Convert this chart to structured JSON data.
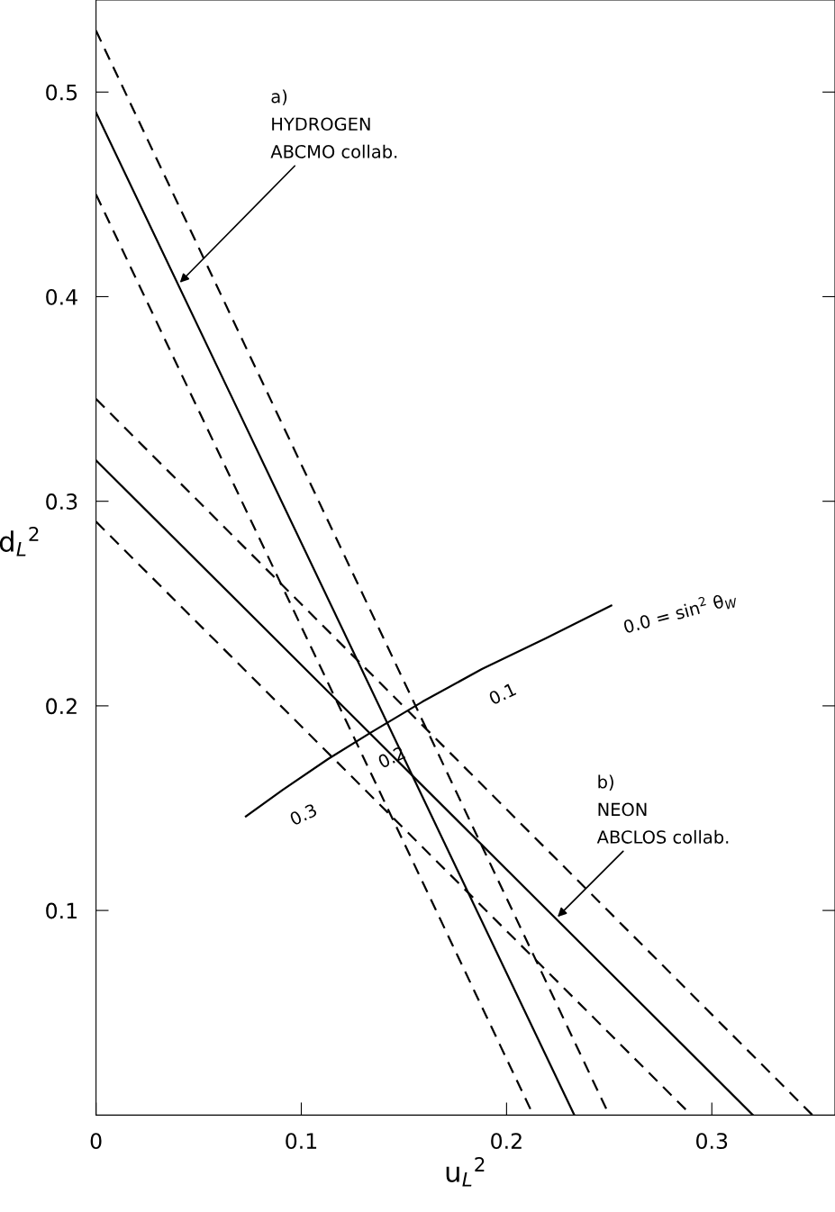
{
  "chart_data": {
    "type": "line",
    "xlabel": "u$_{L}$$^{2}$",
    "ylabel": "d$_{L}$$^{2}$",
    "xlim": [
      0,
      0.36
    ],
    "ylim": [
      0,
      0.545
    ],
    "xticks": [
      0,
      0.1,
      0.2,
      0.3
    ],
    "yticks": [
      0.1,
      0.2,
      0.3,
      0.4,
      0.5
    ],
    "grid": false,
    "legend": false,
    "marker": "none",
    "series": [
      {
        "color": "#000000",
        "line_style": "solid",
        "x": [
          0,
          0.233
        ],
        "values": [
          0.49,
          0
        ]
      },
      {
        "color": "#000000",
        "line_style": "dashed",
        "x": [
          0,
          0.25
        ],
        "values": [
          0.53,
          0
        ]
      },
      {
        "color": "#000000",
        "line_style": "dashed",
        "x": [
          0,
          0.213
        ],
        "values": [
          0.45,
          0
        ]
      },
      {
        "color": "#000000",
        "line_style": "solid",
        "x": [
          0,
          0.32
        ],
        "values": [
          0.32,
          0
        ]
      },
      {
        "color": "#000000",
        "line_style": "dashed",
        "x": [
          0,
          0.349
        ],
        "values": [
          0.35,
          0
        ]
      },
      {
        "color": "#000000",
        "line_style": "dashed",
        "x": [
          0,
          0.29
        ],
        "values": [
          0.29,
          0
        ]
      },
      {
        "color": "#000000",
        "line_style": "solid",
        "x": [
          0.073,
          0.091,
          0.113,
          0.134,
          0.159,
          0.188,
          0.219,
          0.251
        ],
        "values": [
          0.146,
          0.159,
          0.174,
          0.187,
          0.202,
          0.218,
          0.233,
          0.249
        ]
      }
    ],
    "annotations": [
      {
        "text": "a)\nHYDROGEN\nABCMO collab.",
        "x": 0.04,
        "y": 0.406
      },
      {
        "text": "b)\nNEON\nABCLOS collab.",
        "x": 0.224,
        "y": 0.096
      },
      {
        "text": "0.0 = sin$^{2}$ θ$_{W}$",
        "x": 0.251,
        "y": 0.249
      },
      {
        "text": "0.1",
        "x": 0.188,
        "y": 0.218
      },
      {
        "text": "0.2",
        "x": 0.134,
        "y": 0.187
      },
      {
        "text": "0.3",
        "x": 0.091,
        "y": 0.159
      }
    ]
  }
}
